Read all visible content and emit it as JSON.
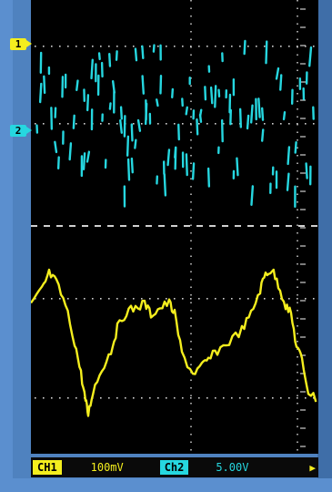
{
  "screen": {
    "ch1_marker": "1",
    "ch2_marker": "2"
  },
  "status_bar": {
    "ch1_label": "CH1",
    "ch1_scale": "100mV",
    "ch2_label": "Ch2",
    "ch2_scale": "5.00V"
  },
  "colors": {
    "ch1_trace": "#f4ee1e",
    "ch2_trace": "#26d7e0",
    "background": "#000000",
    "bezel": "#4f82bf",
    "graticule": "#cfcfcf"
  }
}
